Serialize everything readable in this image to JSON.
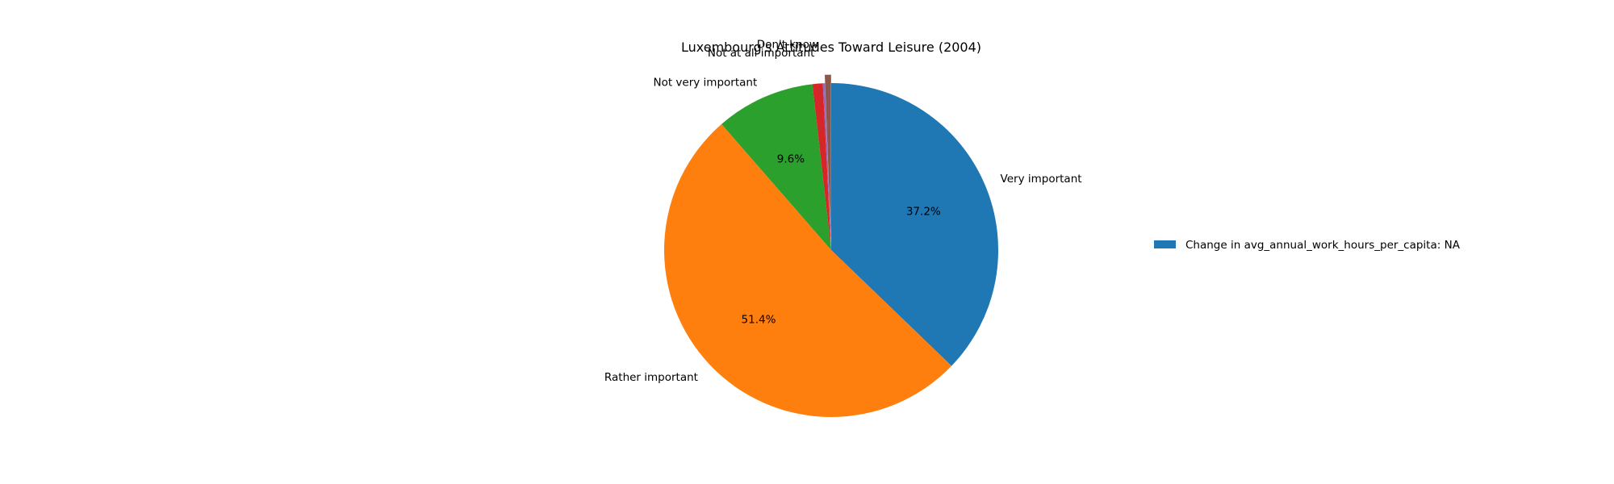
{
  "chart_data": {
    "type": "pie",
    "title": "Luxembourg's Attitudes Toward Leisure (2004)",
    "start_angle_deg": 90,
    "direction": "clockwise",
    "slices": [
      {
        "label": "Very important",
        "value": 37.2,
        "pct_label": "37.2%",
        "color": "#1f77b4"
      },
      {
        "label": "Rather important",
        "value": 51.4,
        "pct_label": "51.4%",
        "color": "#ff7f0e"
      },
      {
        "label": "Not very important",
        "value": 9.6,
        "pct_label": "9.6%",
        "color": "#2ca02c"
      },
      {
        "label": "Not at all important",
        "value": 1.0,
        "pct_label": "",
        "color": "#d62728"
      },
      {
        "label": "Don't know",
        "value": 0.2,
        "pct_label": "",
        "color": "#9467bd"
      },
      {
        "label": "",
        "value": 0.6,
        "pct_label": "",
        "color": "#8c564b"
      }
    ],
    "legend": {
      "placement": "right",
      "entries": [
        {
          "label": "Change in avg_annual_work_hours_per_capita: NA",
          "color": "#1f77b4"
        }
      ]
    }
  }
}
